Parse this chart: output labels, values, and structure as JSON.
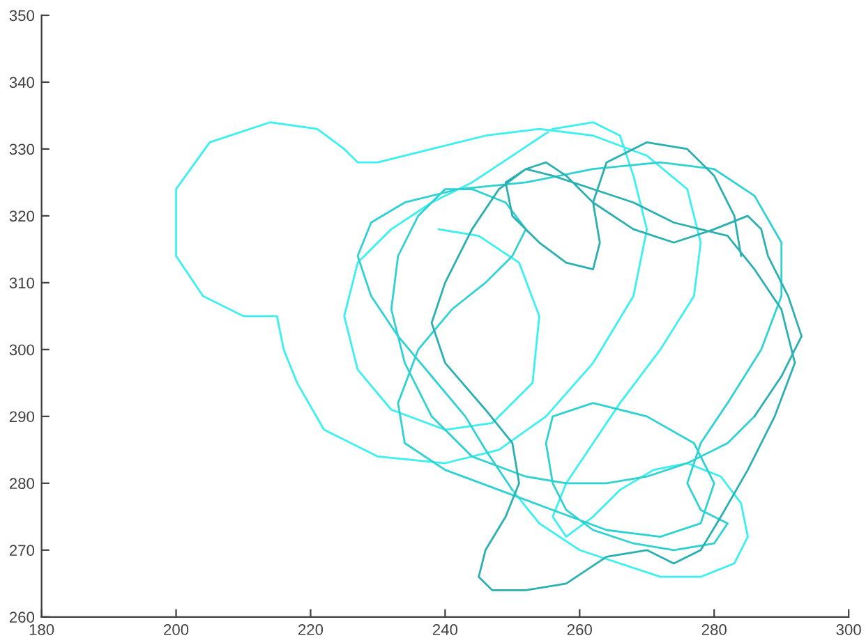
{
  "chart_data": {
    "type": "line",
    "xlim": [
      180,
      300
    ],
    "ylim": [
      260,
      350
    ],
    "xticks": [
      180,
      200,
      220,
      240,
      260,
      280,
      300
    ],
    "yticks": [
      260,
      270,
      280,
      290,
      300,
      310,
      320,
      330,
      340,
      350
    ],
    "grid": false,
    "marker": "none",
    "line_style": "solid",
    "series": [
      {
        "color": "#3af0f0",
        "x": [
          239,
          245,
          251,
          254,
          253,
          247,
          240,
          232,
          227,
          225,
          227,
          232,
          238,
          244,
          250,
          256,
          262,
          266,
          268,
          270,
          268,
          262,
          255,
          248,
          240,
          230,
          222,
          218,
          216,
          215,
          210,
          204,
          200,
          200,
          205,
          214,
          221,
          225,
          227,
          230,
          238,
          246,
          254,
          262,
          270,
          276,
          278,
          277,
          272,
          266,
          262,
          258,
          256,
          258,
          262,
          266,
          271,
          276,
          281,
          284,
          285,
          283,
          278,
          272,
          266,
          260,
          254,
          250
        ],
        "values": [
          318,
          317,
          313,
          305,
          295,
          289,
          288,
          291,
          297,
          305,
          313,
          318,
          322,
          325,
          329,
          333,
          334,
          332,
          326,
          318,
          308,
          298,
          290,
          285,
          283,
          284,
          288,
          295,
          300,
          305,
          305,
          308,
          314,
          324,
          331,
          334,
          333,
          330,
          328,
          328,
          330,
          332,
          333,
          332,
          329,
          324,
          316,
          308,
          300,
          292,
          286,
          280,
          275,
          272,
          275,
          279,
          282,
          283,
          281,
          277,
          272,
          268,
          266,
          266,
          268,
          270,
          274,
          279
        ]
      },
      {
        "color": "#2fd2d2",
        "x": [
          250,
          246,
          243,
          238,
          233,
          229,
          227,
          229,
          234,
          242,
          252,
          262,
          272,
          280,
          286,
          290,
          290,
          287,
          282,
          278,
          276,
          278,
          282,
          280,
          274,
          268,
          262,
          258,
          256,
          255,
          256,
          262,
          270,
          277,
          280,
          278,
          272,
          264,
          256,
          248,
          240,
          234,
          233,
          236,
          241,
          246,
          250,
          252,
          249,
          244,
          240,
          236,
          233,
          232,
          234,
          238,
          244,
          252,
          258,
          264,
          270,
          276,
          282,
          286
        ],
        "values": [
          279,
          285,
          290,
          296,
          302,
          308,
          314,
          319,
          322,
          324,
          325,
          327,
          328,
          327,
          323,
          316,
          308,
          300,
          292,
          286,
          280,
          276,
          274,
          271,
          270,
          271,
          273,
          276,
          280,
          286,
          290,
          292,
          290,
          286,
          280,
          274,
          272,
          273,
          276,
          279,
          282,
          286,
          292,
          300,
          306,
          310,
          314,
          318,
          322,
          324,
          324,
          320,
          314,
          306,
          298,
          290,
          284,
          281,
          280,
          280,
          281,
          283,
          286,
          290
        ]
      },
      {
        "color": "#2ab0b0",
        "x": [
          286,
          290,
          293,
          291,
          288,
          287,
          285,
          280,
          274,
          268,
          262,
          258,
          255,
          252,
          248,
          244,
          240,
          238,
          240,
          246,
          250,
          251,
          249,
          246,
          245,
          247,
          252,
          258,
          264,
          270,
          274,
          278,
          281,
          285,
          289,
          292,
          290,
          286,
          282,
          278,
          274,
          268,
          262,
          256,
          252,
          249,
          250,
          254,
          258,
          262,
          263,
          262,
          264,
          270,
          276,
          280,
          283,
          284
        ],
        "values": [
          290,
          296,
          302,
          308,
          314,
          318,
          320,
          318,
          316,
          318,
          322,
          326,
          328,
          327,
          324,
          318,
          310,
          304,
          298,
          291,
          286,
          280,
          275,
          270,
          266,
          264,
          264,
          265,
          269,
          270,
          268,
          270,
          275,
          282,
          290,
          298,
          306,
          312,
          317,
          318,
          319,
          322,
          324,
          326,
          327,
          325,
          320,
          316,
          313,
          312,
          316,
          322,
          328,
          331,
          330,
          326,
          320,
          314
        ]
      }
    ]
  }
}
